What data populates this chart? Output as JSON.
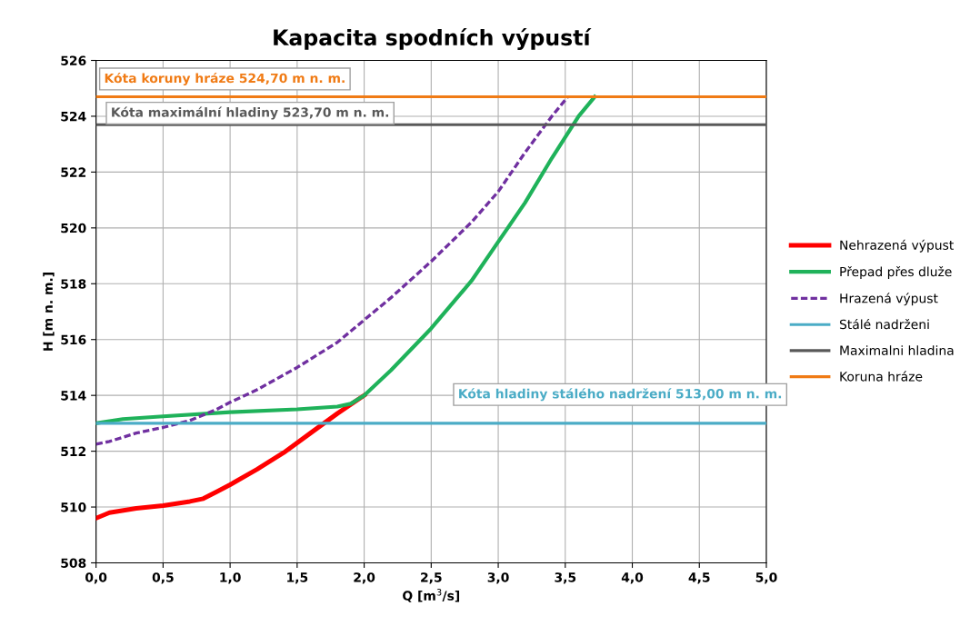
{
  "chart_data": {
    "type": "line",
    "title": "Kapacita spodních výpustí",
    "xlabel": "Q [m$^{3}$/s]",
    "ylabel": "H [m n. m.]",
    "xlim": [
      0,
      5
    ],
    "ylim": [
      508,
      526
    ],
    "xticks": [
      {
        "value": 0,
        "label": "0,0"
      },
      {
        "value": 0.5,
        "label": "0,5"
      },
      {
        "value": 1,
        "label": "1,0"
      },
      {
        "value": 1.5,
        "label": "1,5"
      },
      {
        "value": 2,
        "label": "2,0"
      },
      {
        "value": 2.5,
        "label": "2,5"
      },
      {
        "value": 3,
        "label": "3,0"
      },
      {
        "value": 3.5,
        "label": "3,5"
      },
      {
        "value": 4,
        "label": "4,0"
      },
      {
        "value": 4.5,
        "label": "4,5"
      },
      {
        "value": 5,
        "label": "5,0"
      }
    ],
    "yticks": [
      508,
      510,
      512,
      514,
      516,
      518,
      520,
      522,
      524,
      526
    ],
    "grid": true,
    "legend": "right",
    "marker": "none",
    "series": [
      {
        "name": "Nehrazená výpust",
        "color": "#ff0000",
        "line_style": "solid",
        "x": [
          0,
          0.1,
          0.3,
          0.5,
          0.7,
          0.8,
          0.9,
          1.0,
          1.2,
          1.4,
          1.6,
          1.8,
          2.0
        ],
        "values": [
          509.6,
          509.8,
          509.95,
          510.05,
          510.2,
          510.3,
          510.55,
          510.8,
          511.35,
          511.95,
          512.65,
          513.35,
          514.0
        ]
      },
      {
        "name": "Přepad přes dluže",
        "color": "#1fb25a",
        "line_style": "solid",
        "x": [
          0,
          0.2,
          0.5,
          1.0,
          1.5,
          1.8,
          1.9,
          2.0,
          2.2,
          2.5,
          2.8,
          3.0,
          3.2,
          3.4,
          3.6,
          3.72
        ],
        "values": [
          513.0,
          513.15,
          513.25,
          513.4,
          513.5,
          513.6,
          513.7,
          514.0,
          514.9,
          516.4,
          518.1,
          519.5,
          520.9,
          522.5,
          524.0,
          524.7
        ]
      },
      {
        "name": "Hrazená výpust",
        "color": "#7030a0",
        "line_style": "dashed",
        "x": [
          0,
          0.1,
          0.3,
          0.5,
          0.7,
          0.9,
          1.0,
          1.2,
          1.5,
          1.8,
          2.0,
          2.2,
          2.5,
          2.8,
          3.0,
          3.2,
          3.4,
          3.52
        ],
        "values": [
          512.25,
          512.35,
          512.65,
          512.85,
          513.1,
          513.5,
          513.75,
          514.2,
          515.0,
          515.9,
          516.7,
          517.5,
          518.8,
          520.2,
          521.3,
          522.7,
          524.0,
          524.7
        ]
      },
      {
        "name": "Stálé nadrženi",
        "color": "#4bacc6",
        "line_style": "solid",
        "x": [
          0,
          5
        ],
        "values": [
          513.0,
          513.0
        ]
      },
      {
        "name": "Maximalni hladina",
        "color": "#595959",
        "line_style": "solid",
        "x": [
          0,
          5
        ],
        "values": [
          523.7,
          523.7
        ]
      },
      {
        "name": "Koruna hráze",
        "color": "#f07b15",
        "line_style": "solid",
        "x": [
          0,
          5
        ],
        "values": [
          524.7,
          524.7
        ]
      }
    ],
    "annotations": [
      "Kóta koruny hráze 524,70 m n. m.",
      "Kóta maximální hladiny 523,70 m n. m.",
      "Kóta hladiny stálého nadržení 513,00 m n. m."
    ]
  }
}
